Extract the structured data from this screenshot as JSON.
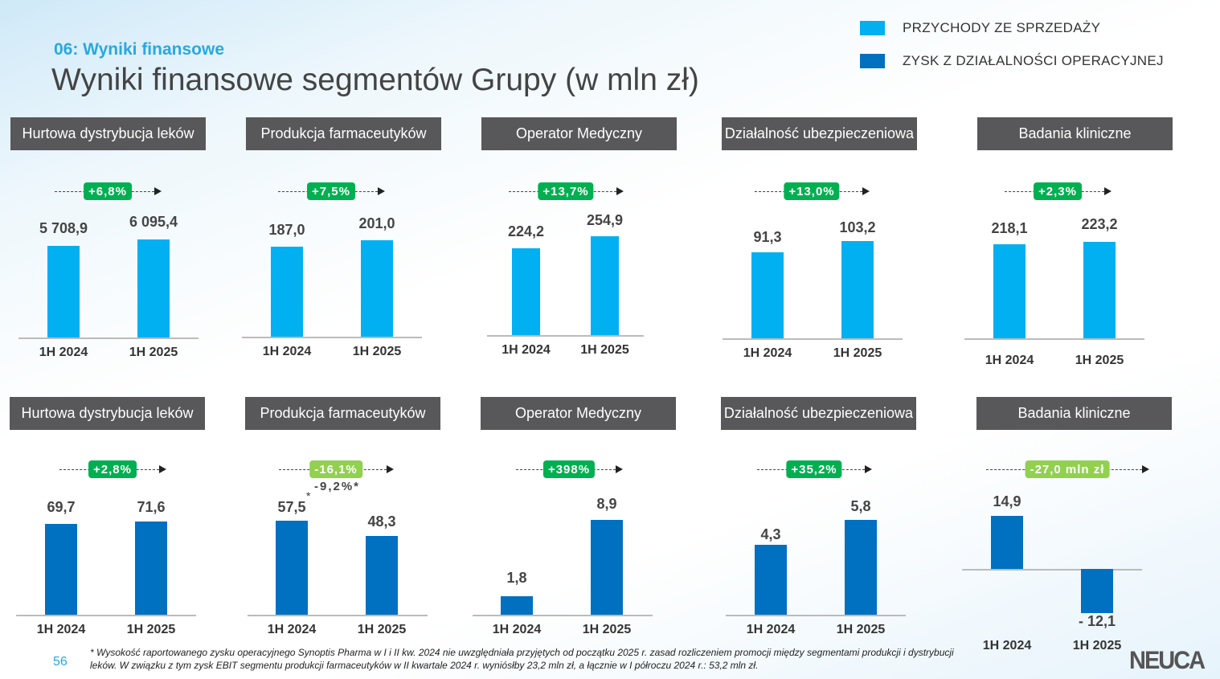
{
  "section_label": "06: Wyniki finansowe",
  "title": "Wyniki finansowe segmentów Grupy (w mln zł)",
  "legend": [
    {
      "label": "PRZYCHODY ZE SPRZEDAŻY",
      "color": "#00b0f0"
    },
    {
      "label": "ZYSK Z DZIAŁALNOŚCI OPERACYJNEJ",
      "color": "#0070c0"
    }
  ],
  "colors": {
    "badge_positive": "#00b050",
    "badge_negative": "#92d050",
    "header_bg": "#58585a"
  },
  "revenue_panels": [
    {
      "header": "Hurtowa dystrybucja leków",
      "change": "+6,8%",
      "periods": [
        "1H 2024",
        "1H 2025"
      ],
      "labels": [
        "5 708,9",
        "6 095,4"
      ],
      "values": [
        5708.9,
        6095.4
      ]
    },
    {
      "header": "Produkcja farmaceutyków",
      "change": "+7,5%",
      "periods": [
        "1H 2024",
        "1H 2025"
      ],
      "labels": [
        "187,0",
        "201,0"
      ],
      "values": [
        187.0,
        201.0
      ]
    },
    {
      "header": "Operator Medyczny",
      "change": "+13,7%",
      "periods": [
        "1H 2024",
        "1H 2025"
      ],
      "labels": [
        "224,2",
        "254,9"
      ],
      "values": [
        224.2,
        254.9
      ]
    },
    {
      "header": "Działalność ubezpieczeniowa",
      "change": "+13,0%",
      "periods": [
        "1H 2024",
        "1H 2025"
      ],
      "labels": [
        "91,3",
        "103,2"
      ],
      "values": [
        91.3,
        103.2
      ]
    },
    {
      "header": "Badania kliniczne",
      "change": "+2,3%",
      "periods": [
        "1H 2024",
        "1H 2025"
      ],
      "labels": [
        "218,1",
        "223,2"
      ],
      "values": [
        218.1,
        223.2
      ]
    }
  ],
  "ebit_panels": [
    {
      "header": "Hurtowa dystrybucja leków",
      "change": "+2,8%",
      "periods": [
        "1H 2024",
        "1H 2025"
      ],
      "labels": [
        "69,7",
        "71,6"
      ],
      "values": [
        69.7,
        71.6
      ]
    },
    {
      "header": "Produkcja farmaceutyków",
      "change": "-16,1%",
      "note": "-9,2%*",
      "periods": [
        "1H 2024",
        "1H 2025"
      ],
      "labels": [
        "57,5",
        "48,3"
      ],
      "values": [
        57.5,
        48.3
      ],
      "footnote_mark": "*"
    },
    {
      "header": "Operator Medyczny",
      "change": "+398%",
      "periods": [
        "1H 2024",
        "1H 2025"
      ],
      "labels": [
        "1,8",
        "8,9"
      ],
      "values": [
        1.8,
        8.9
      ]
    },
    {
      "header": "Działalność ubezpieczeniowa",
      "change": "+35,2%",
      "periods": [
        "1H 2024",
        "1H 2025"
      ],
      "labels": [
        "4,3",
        "5,8"
      ],
      "values": [
        4.3,
        5.8
      ]
    },
    {
      "header": "Badania kliniczne",
      "change": "-27,0 mln zł",
      "periods": [
        "1H 2024",
        "1H 2025"
      ],
      "labels": [
        "14,9",
        "- 12,1"
      ],
      "values": [
        14.9,
        -12.1
      ]
    }
  ],
  "footnote": "* Wysokość raportowanego zysku operacyjnego Synoptis Pharma w I i II kw. 2024 nie uwzględniała przyjętych od początku 2025 r. zasad rozliczeniem promocji między segmentami produkcji i dystrybucji leków. W związku z tym zysk EBIT segmentu produkcji farmaceutyków w II kwartale 2024 r. wyniósłby 23,2 mln zł, a łącznie w I półroczu 2024 r.: 53,2 mln zł.",
  "page_number": "56",
  "logo": "NEUCA"
}
